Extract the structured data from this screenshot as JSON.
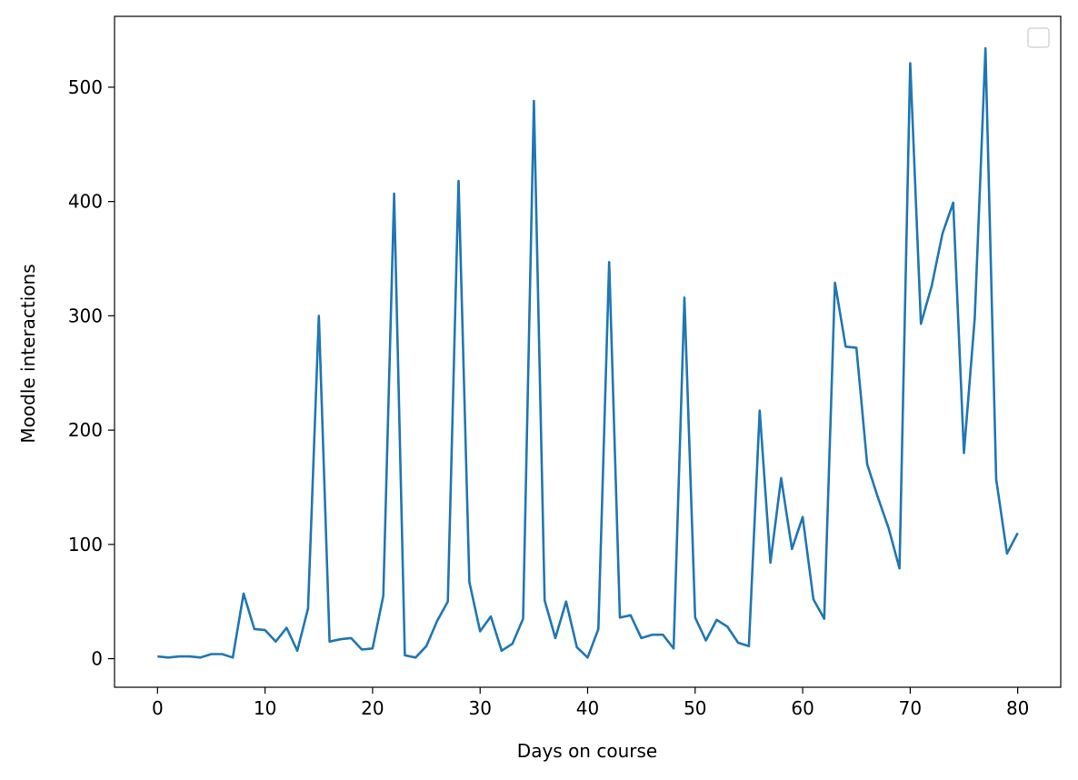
{
  "chart_data": {
    "type": "line",
    "title": "",
    "xlabel": "Days on course",
    "ylabel": "Moodle interactions",
    "xlim": [
      -4,
      84
    ],
    "ylim": [
      -25,
      562
    ],
    "xticks": [
      0,
      10,
      20,
      30,
      40,
      50,
      60,
      70,
      80
    ],
    "yticks": [
      0,
      100,
      200,
      300,
      400,
      500
    ],
    "grid": false,
    "legend": "top-right (empty)",
    "series": [
      {
        "color": "#1f77b4",
        "x": [
          0,
          1,
          2,
          3,
          4,
          5,
          6,
          7,
          8,
          9,
          10,
          11,
          12,
          13,
          14,
          15,
          16,
          17,
          18,
          19,
          20,
          21,
          22,
          23,
          24,
          25,
          26,
          27,
          28,
          29,
          30,
          31,
          32,
          33,
          34,
          35,
          36,
          37,
          38,
          39,
          40,
          41,
          42,
          43,
          44,
          45,
          46,
          47,
          48,
          49,
          50,
          51,
          52,
          53,
          54,
          55,
          56,
          57,
          58,
          59,
          60,
          61,
          62,
          63,
          64,
          65,
          66,
          67,
          68,
          69,
          70,
          71,
          72,
          73,
          74,
          75,
          76,
          77,
          78,
          79,
          80
        ],
        "values": [
          2,
          1,
          2,
          2,
          1,
          4,
          4,
          1,
          57,
          26,
          25,
          15,
          27,
          7,
          44,
          300,
          15,
          17,
          18,
          8,
          9,
          55,
          407,
          3,
          1,
          11,
          33,
          50,
          418,
          67,
          24,
          37,
          7,
          13,
          35,
          488,
          51,
          18,
          50,
          10,
          1,
          26,
          347,
          36,
          38,
          18,
          21,
          21,
          9,
          316,
          36,
          16,
          34,
          28,
          14,
          11,
          217,
          84,
          158,
          96,
          124,
          52,
          35,
          329,
          273,
          272,
          170,
          141,
          114,
          79,
          521,
          293,
          326,
          372,
          399,
          180,
          298,
          534,
          157,
          92,
          110
        ]
      }
    ]
  }
}
